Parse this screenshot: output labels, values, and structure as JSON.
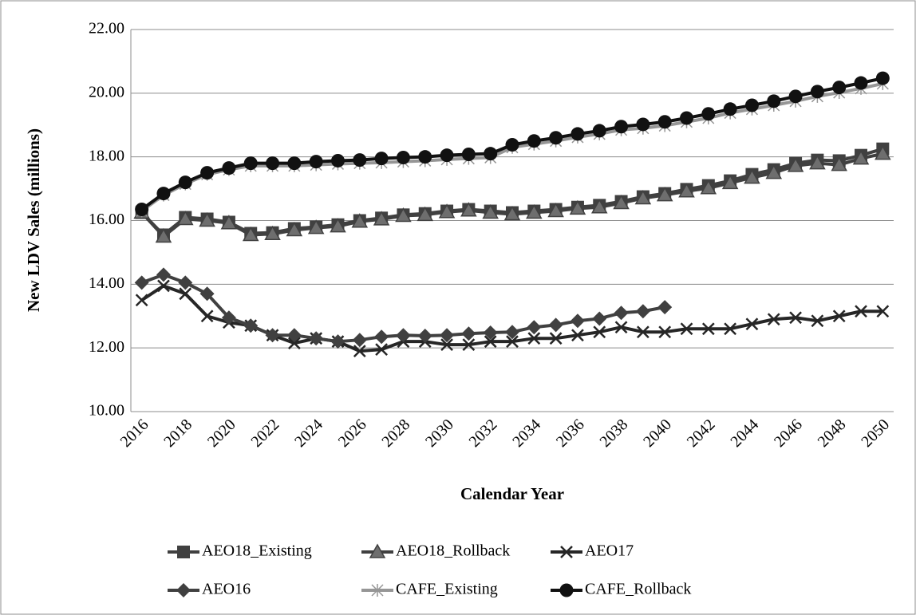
{
  "chart_data": {
    "type": "line",
    "x_label": "Calendar Year",
    "y_label": "New LDV Sales (millions)",
    "categories": [
      "2016",
      null,
      "2018",
      null,
      "2020",
      null,
      "2022",
      null,
      "2024",
      null,
      "2026",
      null,
      "2028",
      null,
      "2030",
      null,
      "2032",
      null,
      "2034",
      null,
      "2036",
      null,
      "2038",
      null,
      "2040",
      null,
      "2042",
      null,
      "2044",
      null,
      "2046",
      null,
      "2048",
      null,
      "2050"
    ],
    "ylim": [
      10,
      22
    ],
    "yticks": [
      {
        "value": 10,
        "label": "10.00"
      },
      {
        "value": 12,
        "label": "12.00"
      },
      {
        "value": 14,
        "label": "14.00"
      },
      {
        "value": 16,
        "label": "16.00"
      },
      {
        "value": 18,
        "label": "18.00"
      },
      {
        "value": 20,
        "label": "20.00"
      },
      {
        "value": 22,
        "label": "22.00"
      }
    ],
    "grid": true,
    "legend": "bottom",
    "series": [
      {
        "name": "AEO18_Existing",
        "color": "#404040",
        "marker": "square",
        "values": [
          16.25,
          15.55,
          16.1,
          16.05,
          15.95,
          15.6,
          15.62,
          15.75,
          15.8,
          15.87,
          16.0,
          16.08,
          16.18,
          16.22,
          16.3,
          16.35,
          16.3,
          16.25,
          16.3,
          16.35,
          16.42,
          16.48,
          16.6,
          16.75,
          16.85,
          16.98,
          17.1,
          17.25,
          17.45,
          17.6,
          17.8,
          17.9,
          17.88,
          18.05,
          18.25
        ]
      },
      {
        "name": "AEO18_Rollback",
        "color": "#404040",
        "marker": "triangle",
        "values": [
          16.25,
          15.5,
          16.05,
          16.0,
          15.92,
          15.55,
          15.58,
          15.7,
          15.77,
          15.82,
          15.97,
          16.04,
          16.15,
          16.18,
          16.27,
          16.32,
          16.25,
          16.2,
          16.25,
          16.3,
          16.38,
          16.42,
          16.55,
          16.7,
          16.8,
          16.92,
          17.02,
          17.18,
          17.35,
          17.5,
          17.72,
          17.8,
          17.75,
          17.95,
          18.1
        ]
      },
      {
        "name": "AEO17",
        "color": "#262626",
        "marker": "x",
        "values": [
          13.5,
          13.95,
          13.7,
          13.0,
          12.8,
          12.7,
          12.4,
          12.15,
          12.3,
          12.2,
          11.9,
          11.95,
          12.2,
          12.2,
          12.1,
          12.1,
          12.2,
          12.2,
          12.3,
          12.3,
          12.4,
          12.5,
          12.65,
          12.5,
          12.5,
          12.6,
          12.6,
          12.6,
          12.75,
          12.9,
          12.95,
          12.85,
          13.0,
          13.15,
          13.15
        ]
      },
      {
        "name": "AEO16",
        "color": "#404040",
        "marker": "diamond",
        "values": [
          14.05,
          14.3,
          14.05,
          13.7,
          12.95,
          12.7,
          12.4,
          12.4,
          12.3,
          12.2,
          12.25,
          12.35,
          12.4,
          12.38,
          12.4,
          12.45,
          12.48,
          12.5,
          12.65,
          12.72,
          12.85,
          12.92,
          13.1,
          13.15,
          13.28,
          null,
          null,
          null,
          null,
          null,
          null,
          null,
          null,
          null,
          null
        ]
      },
      {
        "name": "CAFE_Existing",
        "color": "#969696",
        "marker": "asterisk",
        "values": [
          16.3,
          16.8,
          17.15,
          17.45,
          17.6,
          17.72,
          17.72,
          17.72,
          17.75,
          17.78,
          17.8,
          17.82,
          17.85,
          17.88,
          17.92,
          17.95,
          17.98,
          18.3,
          18.4,
          18.5,
          18.62,
          18.72,
          18.85,
          18.9,
          18.98,
          19.1,
          19.22,
          19.38,
          19.5,
          19.62,
          19.75,
          19.9,
          20.02,
          20.15,
          20.3
        ]
      },
      {
        "name": "CAFE_Rollback",
        "color": "#111111",
        "marker": "circle",
        "values": [
          16.35,
          16.85,
          17.2,
          17.5,
          17.65,
          17.8,
          17.8,
          17.8,
          17.85,
          17.88,
          17.9,
          17.95,
          17.98,
          18.0,
          18.05,
          18.08,
          18.1,
          18.38,
          18.5,
          18.6,
          18.72,
          18.82,
          18.95,
          19.02,
          19.1,
          19.22,
          19.35,
          19.5,
          19.62,
          19.75,
          19.9,
          20.05,
          20.18,
          20.32,
          20.47
        ]
      }
    ]
  }
}
